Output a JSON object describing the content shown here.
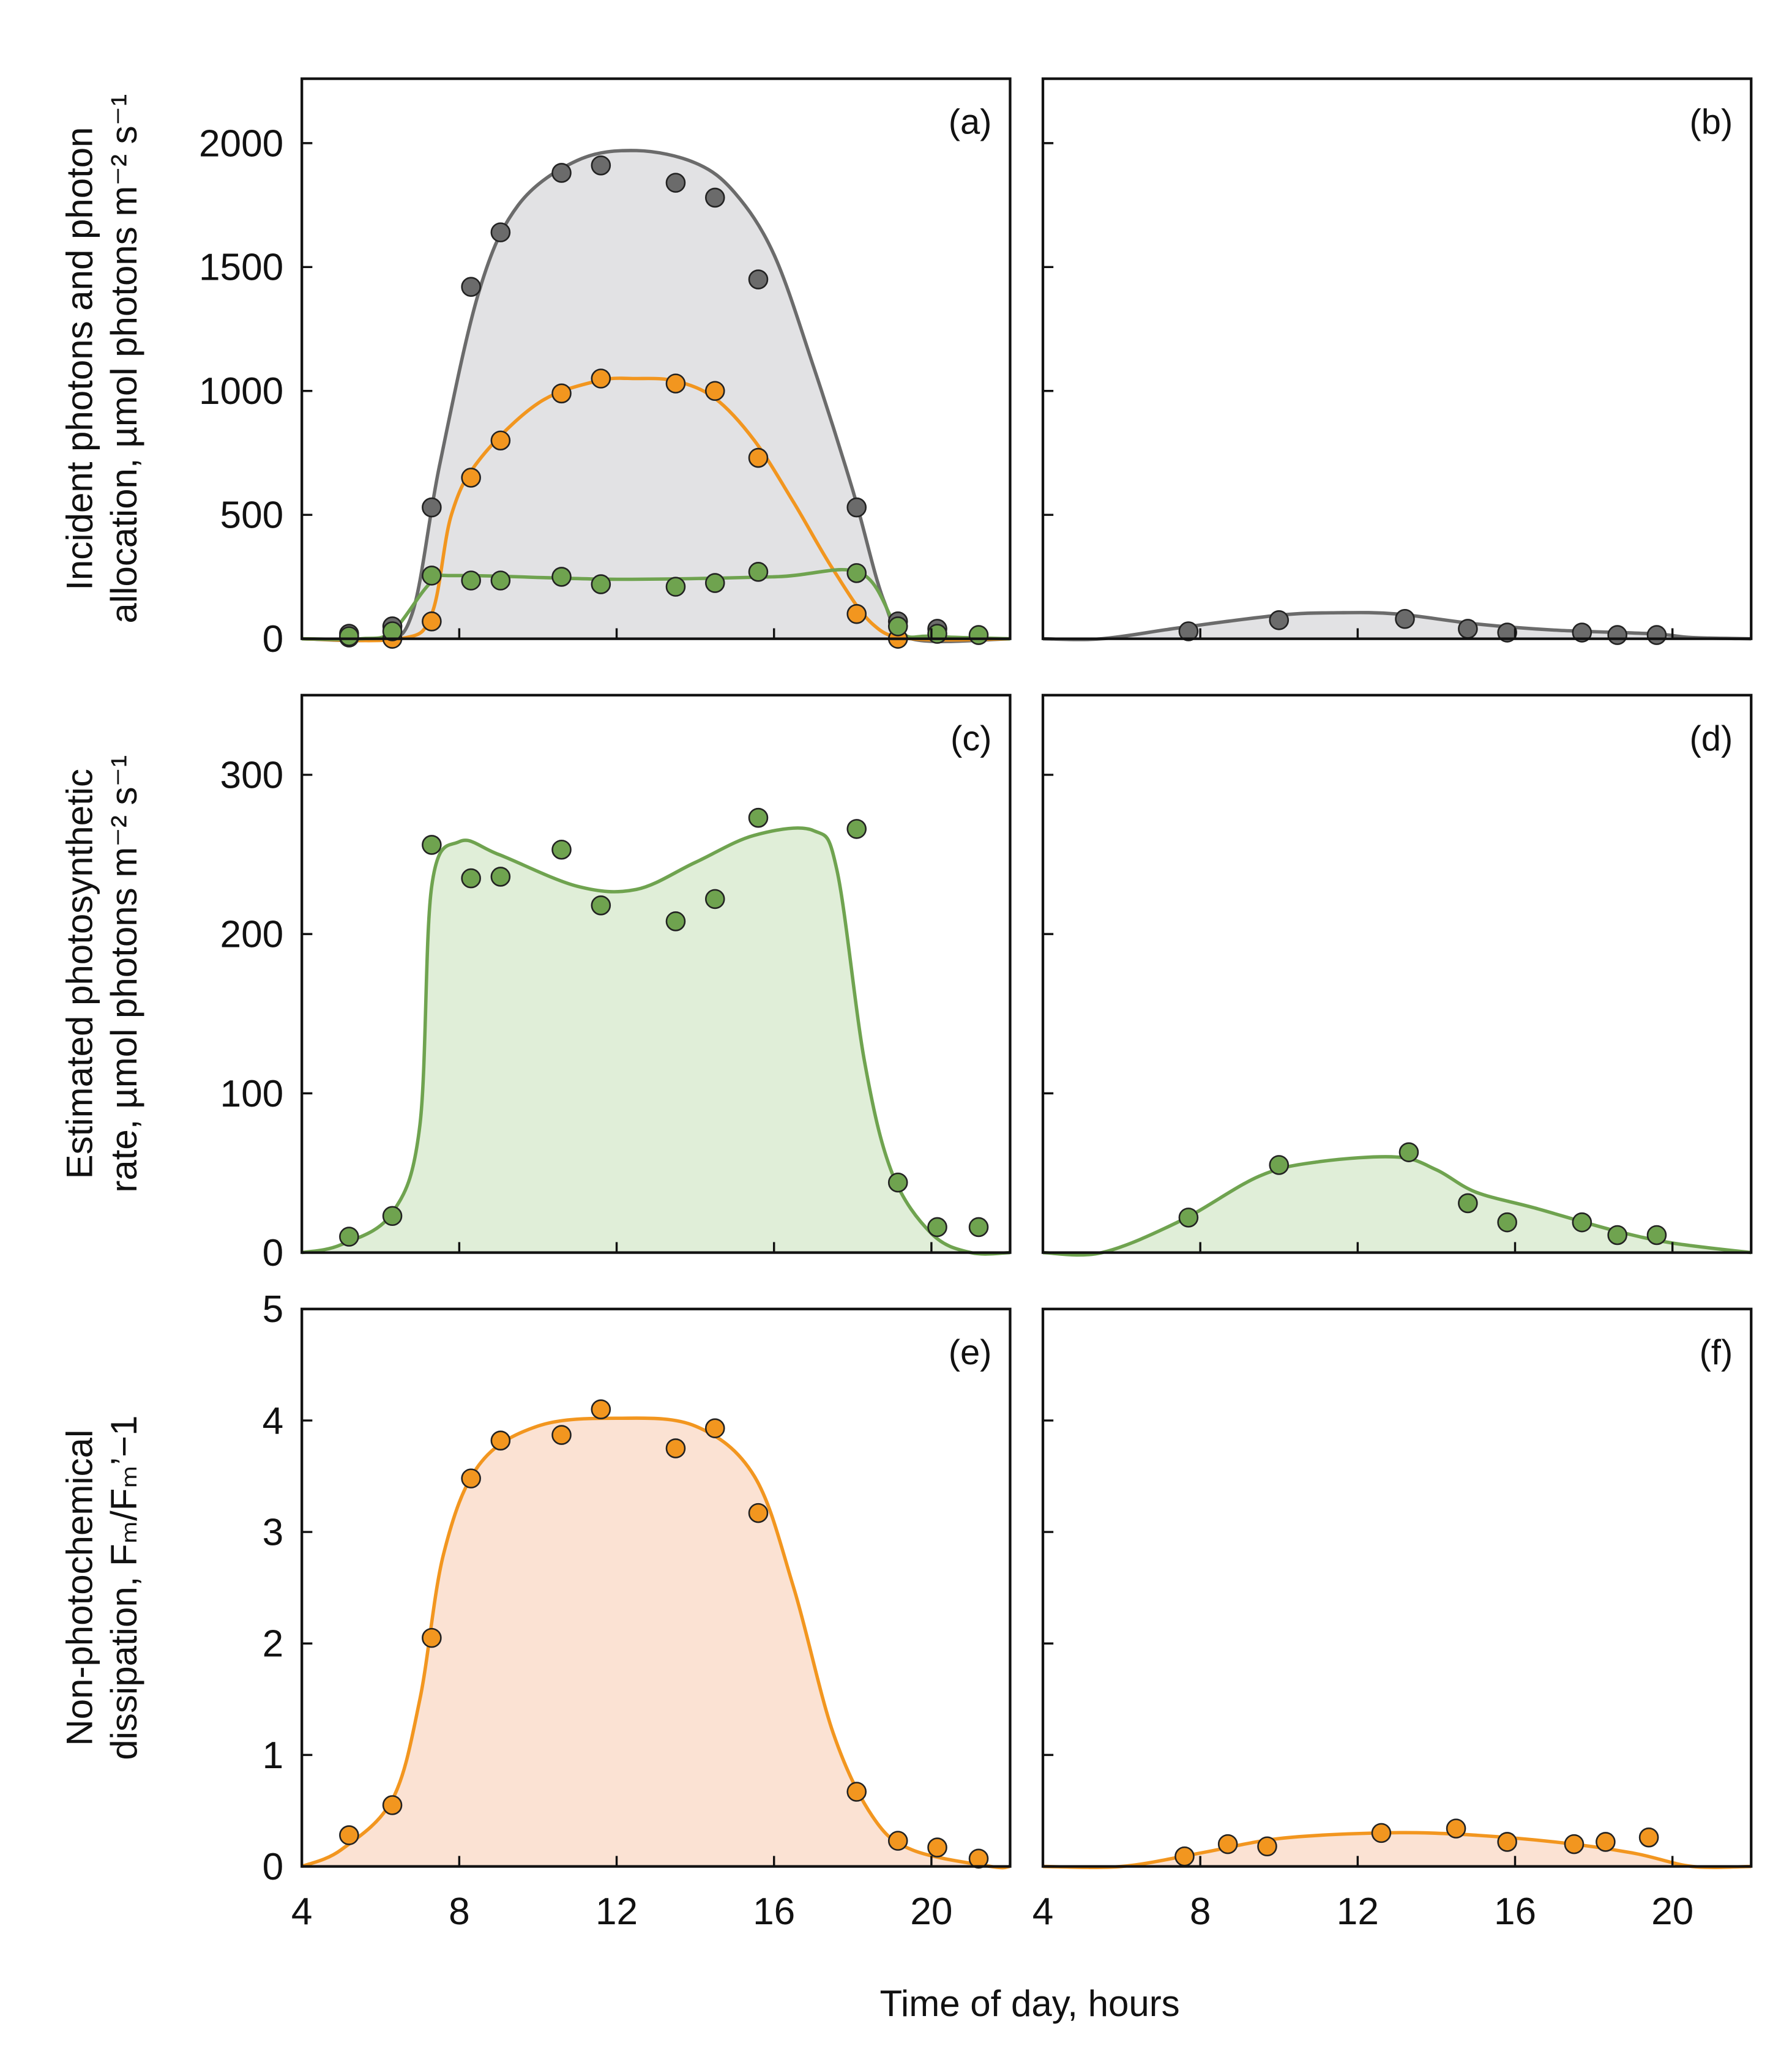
{
  "colors": {
    "gray": "#6b6b6b",
    "gray_fill": "#e2e2e4",
    "orange": "#f2961f",
    "orange_fill": "#fbe2d3",
    "green": "#6fa34f",
    "green_fill": "#e0eed8",
    "point_stroke": "#222222"
  },
  "chart_data": {
    "type": "scatter",
    "xlabel": "Time of day, hours",
    "xlim": [
      4,
      22
    ],
    "xticks": [
      4,
      8,
      12,
      16,
      20
    ],
    "rows": [
      {
        "ylabel_lines": [
          "Incident photons and photon",
          "allocation, µmol photons m⁻² s⁻¹"
        ],
        "ylim": [
          0,
          2260
        ],
        "yticks": [
          0,
          500,
          1000,
          1500,
          2000
        ]
      },
      {
        "ylabel_lines": [
          "Estimated photosynthetic",
          "rate, µmol photons m⁻² s⁻¹"
        ],
        "ylim": [
          0,
          350
        ],
        "yticks": [
          0,
          100,
          200,
          300
        ]
      },
      {
        "ylabel_lines": [
          "Non-photochemical",
          "dissipation, Fₘ/Fₘ’−1"
        ],
        "ylim": [
          0,
          5
        ],
        "yticks": [
          0,
          1,
          2,
          3,
          4,
          5
        ]
      }
    ],
    "panels": [
      {
        "label": "(a)",
        "row": 0,
        "col": 0,
        "series": [
          {
            "name": "incident",
            "color": "gray",
            "fill": "gray_fill",
            "points": [
              [
                5.2,
                20
              ],
              [
                6.3,
                50
              ],
              [
                7.3,
                530
              ],
              [
                8.3,
                1420
              ],
              [
                9.05,
                1640
              ],
              [
                10.6,
                1880
              ],
              [
                11.6,
                1910
              ],
              [
                13.5,
                1840
              ],
              [
                14.5,
                1780
              ],
              [
                15.6,
                1450
              ],
              [
                18.1,
                530
              ],
              [
                19.15,
                70
              ],
              [
                20.15,
                40
              ]
            ],
            "curve": [
              [
                4,
                0
              ],
              [
                6,
                0
              ],
              [
                6.8,
                100
              ],
              [
                7.5,
                700
              ],
              [
                8.5,
                1400
              ],
              [
                9.5,
                1750
              ],
              [
                11,
                1930
              ],
              [
                12.5,
                1970
              ],
              [
                14,
                1920
              ],
              [
                15,
                1800
              ],
              [
                16,
                1550
              ],
              [
                17,
                1100
              ],
              [
                18,
                600
              ],
              [
                18.8,
                150
              ],
              [
                19.5,
                0
              ],
              [
                22,
                0
              ]
            ]
          },
          {
            "name": "non-photochemical",
            "color": "orange",
            "fill": null,
            "points": [
              [
                5.2,
                5
              ],
              [
                6.3,
                0
              ],
              [
                7.3,
                70
              ],
              [
                8.3,
                650
              ],
              [
                9.05,
                800
              ],
              [
                10.6,
                990
              ],
              [
                11.6,
                1050
              ],
              [
                13.5,
                1030
              ],
              [
                14.5,
                1000
              ],
              [
                15.6,
                730
              ],
              [
                18.1,
                100
              ],
              [
                19.15,
                0
              ]
            ],
            "curve": [
              [
                4,
                0
              ],
              [
                6.5,
                0
              ],
              [
                7.3,
                100
              ],
              [
                7.8,
                500
              ],
              [
                8.5,
                720
              ],
              [
                10,
                950
              ],
              [
                11.5,
                1040
              ],
              [
                12.5,
                1050
              ],
              [
                13.5,
                1040
              ],
              [
                14.5,
                970
              ],
              [
                15.5,
                800
              ],
              [
                16.5,
                550
              ],
              [
                17.5,
                280
              ],
              [
                18.5,
                60
              ],
              [
                19.5,
                0
              ],
              [
                22,
                0
              ]
            ]
          },
          {
            "name": "photosynthetic",
            "color": "green",
            "fill": null,
            "points": [
              [
                5.2,
                10
              ],
              [
                6.3,
                30
              ],
              [
                7.3,
                255
              ],
              [
                8.3,
                235
              ],
              [
                9.05,
                235
              ],
              [
                10.6,
                250
              ],
              [
                11.6,
                220
              ],
              [
                13.5,
                210
              ],
              [
                14.5,
                225
              ],
              [
                15.6,
                270
              ],
              [
                18.1,
                265
              ],
              [
                19.15,
                50
              ],
              [
                20.15,
                20
              ],
              [
                21.2,
                15
              ]
            ],
            "curve": [
              [
                4,
                0
              ],
              [
                5.5,
                0
              ],
              [
                6.3,
                30
              ],
              [
                7.3,
                230
              ],
              [
                8,
                255
              ],
              [
                12,
                240
              ],
              [
                16,
                250
              ],
              [
                18.2,
                265
              ],
              [
                19.2,
                30
              ],
              [
                20,
                10
              ],
              [
                22,
                0
              ]
            ]
          }
        ]
      },
      {
        "label": "(b)",
        "row": 0,
        "col": 1,
        "series": [
          {
            "name": "incident",
            "color": "gray",
            "fill": "gray_fill",
            "points": [
              [
                7.7,
                30
              ],
              [
                10.0,
                75
              ],
              [
                13.2,
                80
              ],
              [
                14.8,
                40
              ],
              [
                15.8,
                25
              ],
              [
                17.7,
                25
              ],
              [
                18.6,
                15
              ],
              [
                19.6,
                15
              ]
            ],
            "curve": [
              [
                4,
                0
              ],
              [
                5.5,
                0
              ],
              [
                7.5,
                45
              ],
              [
                10,
                95
              ],
              [
                11.5,
                105
              ],
              [
                13,
                100
              ],
              [
                15,
                60
              ],
              [
                17,
                35
              ],
              [
                19.5,
                20
              ],
              [
                20.5,
                5
              ],
              [
                22,
                0
              ]
            ]
          }
        ]
      },
      {
        "label": "(c)",
        "row": 1,
        "col": 0,
        "series": [
          {
            "name": "photosynthetic",
            "color": "green",
            "fill": "green_fill",
            "points": [
              [
                5.2,
                10
              ],
              [
                6.3,
                23
              ],
              [
                7.3,
                256
              ],
              [
                8.3,
                235
              ],
              [
                9.05,
                236
              ],
              [
                10.6,
                253
              ],
              [
                11.6,
                218
              ],
              [
                13.5,
                208
              ],
              [
                14.5,
                222
              ],
              [
                15.6,
                273
              ],
              [
                18.1,
                266
              ],
              [
                19.15,
                44
              ],
              [
                20.15,
                16
              ],
              [
                21.2,
                16
              ]
            ],
            "curve": [
              [
                4,
                0
              ],
              [
                5,
                5
              ],
              [
                6.3,
                25
              ],
              [
                7,
                80
              ],
              [
                7.3,
                230
              ],
              [
                8,
                258
              ],
              [
                9,
                250
              ],
              [
                11,
                230
              ],
              [
                12.5,
                228
              ],
              [
                14,
                245
              ],
              [
                15.5,
                262
              ],
              [
                17,
                265
              ],
              [
                17.6,
                240
              ],
              [
                18.3,
                120
              ],
              [
                19,
                50
              ],
              [
                20,
                12
              ],
              [
                21,
                0
              ],
              [
                22,
                0
              ]
            ]
          }
        ]
      },
      {
        "label": "(d)",
        "row": 1,
        "col": 1,
        "series": [
          {
            "name": "photosynthetic",
            "color": "green",
            "fill": "green_fill",
            "points": [
              [
                7.7,
                22
              ],
              [
                10.0,
                55
              ],
              [
                13.3,
                63
              ],
              [
                14.8,
                31
              ],
              [
                15.8,
                19
              ],
              [
                17.7,
                19
              ],
              [
                18.6,
                11
              ],
              [
                19.6,
                11
              ]
            ],
            "curve": [
              [
                4,
                0
              ],
              [
                5.5,
                0
              ],
              [
                7.5,
                20
              ],
              [
                9.5,
                48
              ],
              [
                11,
                57
              ],
              [
                13,
                60
              ],
              [
                14,
                52
              ],
              [
                15,
                38
              ],
              [
                16.5,
                28
              ],
              [
                18.5,
                14
              ],
              [
                20,
                6
              ],
              [
                22,
                0
              ]
            ]
          }
        ]
      },
      {
        "label": "(e)",
        "row": 2,
        "col": 0,
        "series": [
          {
            "name": "non-photochemical",
            "color": "orange",
            "fill": "orange_fill",
            "points": [
              [
                5.2,
                0.28
              ],
              [
                6.3,
                0.55
              ],
              [
                7.3,
                2.05
              ],
              [
                8.3,
                3.48
              ],
              [
                9.05,
                3.82
              ],
              [
                10.6,
                3.87
              ],
              [
                11.6,
                4.1
              ],
              [
                13.5,
                3.75
              ],
              [
                14.5,
                3.93
              ],
              [
                15.6,
                3.17
              ],
              [
                18.1,
                0.67
              ],
              [
                19.15,
                0.23
              ],
              [
                20.15,
                0.17
              ],
              [
                21.2,
                0.07
              ]
            ],
            "curve": [
              [
                4,
                0
              ],
              [
                5,
                0.15
              ],
              [
                6.3,
                0.6
              ],
              [
                7,
                1.5
              ],
              [
                7.6,
                2.8
              ],
              [
                8.5,
                3.6
              ],
              [
                10,
                3.95
              ],
              [
                12,
                4.02
              ],
              [
                14,
                3.95
              ],
              [
                15.5,
                3.5
              ],
              [
                16.5,
                2.5
              ],
              [
                17.5,
                1.2
              ],
              [
                18.5,
                0.45
              ],
              [
                19.5,
                0.15
              ],
              [
                21.5,
                0
              ],
              [
                22,
                0
              ]
            ]
          }
        ]
      },
      {
        "label": "(f)",
        "row": 2,
        "col": 1,
        "series": [
          {
            "name": "non-photochemical",
            "color": "orange",
            "fill": "orange_fill",
            "points": [
              [
                7.6,
                0.09
              ],
              [
                8.7,
                0.2
              ],
              [
                9.7,
                0.18
              ],
              [
                12.6,
                0.3
              ],
              [
                14.5,
                0.34
              ],
              [
                15.8,
                0.22
              ],
              [
                17.5,
                0.2
              ],
              [
                18.3,
                0.22
              ],
              [
                19.4,
                0.26
              ]
            ],
            "curve": [
              [
                4,
                0
              ],
              [
                6,
                0
              ],
              [
                8,
                0.12
              ],
              [
                10,
                0.25
              ],
              [
                12.5,
                0.3
              ],
              [
                14.5,
                0.29
              ],
              [
                17,
                0.22
              ],
              [
                19,
                0.12
              ],
              [
                20.5,
                0
              ],
              [
                22,
                0
              ]
            ]
          }
        ]
      }
    ]
  }
}
